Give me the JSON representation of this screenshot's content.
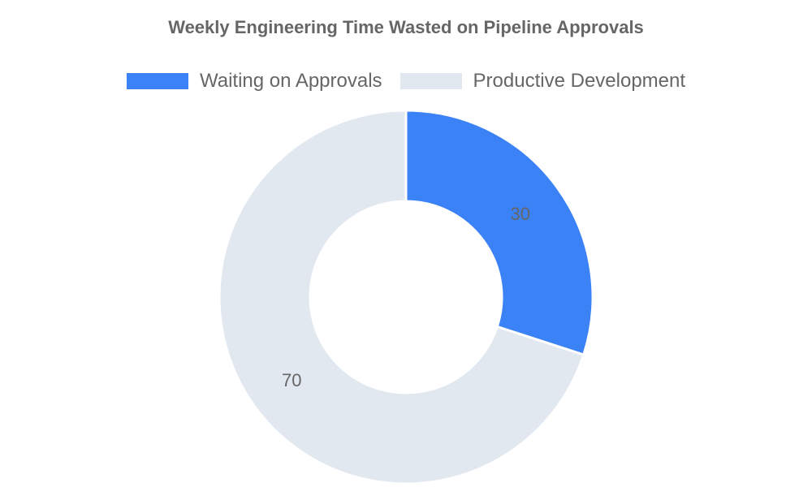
{
  "chart_data": {
    "type": "pie",
    "variant": "doughnut",
    "title": "Weekly Engineering Time Wasted on Pipeline Approvals",
    "legend_position": "top",
    "categories": [
      "Waiting on Approvals",
      "Productive Development"
    ],
    "values": [
      30,
      70
    ],
    "colors": [
      "#3b82f6",
      "#e2e8f0"
    ],
    "data_labels": [
      "30",
      "70"
    ]
  }
}
